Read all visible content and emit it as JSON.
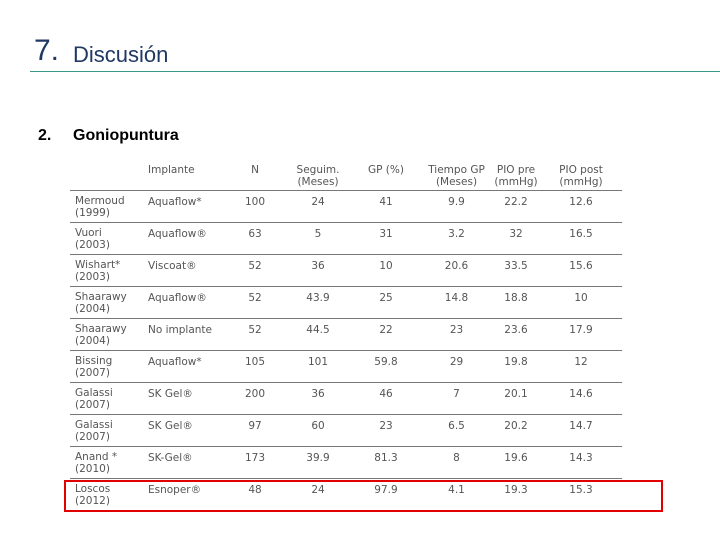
{
  "header": {
    "number": "7.",
    "title": "Discusión"
  },
  "section": {
    "number": "2.",
    "title": "Goniopuntura"
  },
  "table": {
    "columns": [
      "Implante",
      "N",
      "Seguim. (Meses)",
      "GP (%)",
      "Tiempo GP (Meses)",
      "PIO pre (mmHg)",
      "PIO post (mmHg)"
    ],
    "rows": [
      {
        "author": "Mermoud",
        "year": "(1999)",
        "cells": [
          "Aquaflow*",
          100,
          24,
          41,
          9.9,
          22.2,
          12.6
        ]
      },
      {
        "author": "Vuori",
        "year": "(2003)",
        "cells": [
          "Aquaflow®",
          63,
          5,
          31,
          3.2,
          32,
          16.5
        ]
      },
      {
        "author": "Wishart*",
        "year": "(2003)",
        "cells": [
          "Viscoat®",
          52,
          36,
          10,
          20.6,
          33.5,
          15.6
        ]
      },
      {
        "author": "Shaarawy",
        "year": "(2004)",
        "cells": [
          "Aquaflow®",
          52,
          43.9,
          25,
          14.8,
          18.8,
          10
        ]
      },
      {
        "author": "Shaarawy",
        "year": "(2004)",
        "cells": [
          "No implante",
          52,
          44.5,
          22,
          23,
          23.6,
          17.9
        ]
      },
      {
        "author": "Bissing",
        "year": "(2007)",
        "cells": [
          "Aquaflow*",
          105,
          101,
          59.8,
          29,
          19.8,
          12
        ]
      },
      {
        "author": "Galassi",
        "year": "(2007)",
        "cells": [
          "SK Gel®",
          200,
          36,
          46,
          7,
          20.1,
          14.6
        ]
      },
      {
        "author": "Galassi",
        "year": "(2007)",
        "cells": [
          "SK Gel®",
          97,
          60,
          23,
          6.5,
          20.2,
          14.7
        ]
      },
      {
        "author": "Anand *",
        "year": "(2010)",
        "cells": [
          "SK-Gel®",
          173,
          39.9,
          81.3,
          8,
          19.6,
          14.3
        ]
      },
      {
        "author": "Loscos",
        "year": "(2012)",
        "cells": [
          "Esnoper®",
          48,
          24,
          97.9,
          4.1,
          19.3,
          15.3
        ]
      }
    ]
  }
}
